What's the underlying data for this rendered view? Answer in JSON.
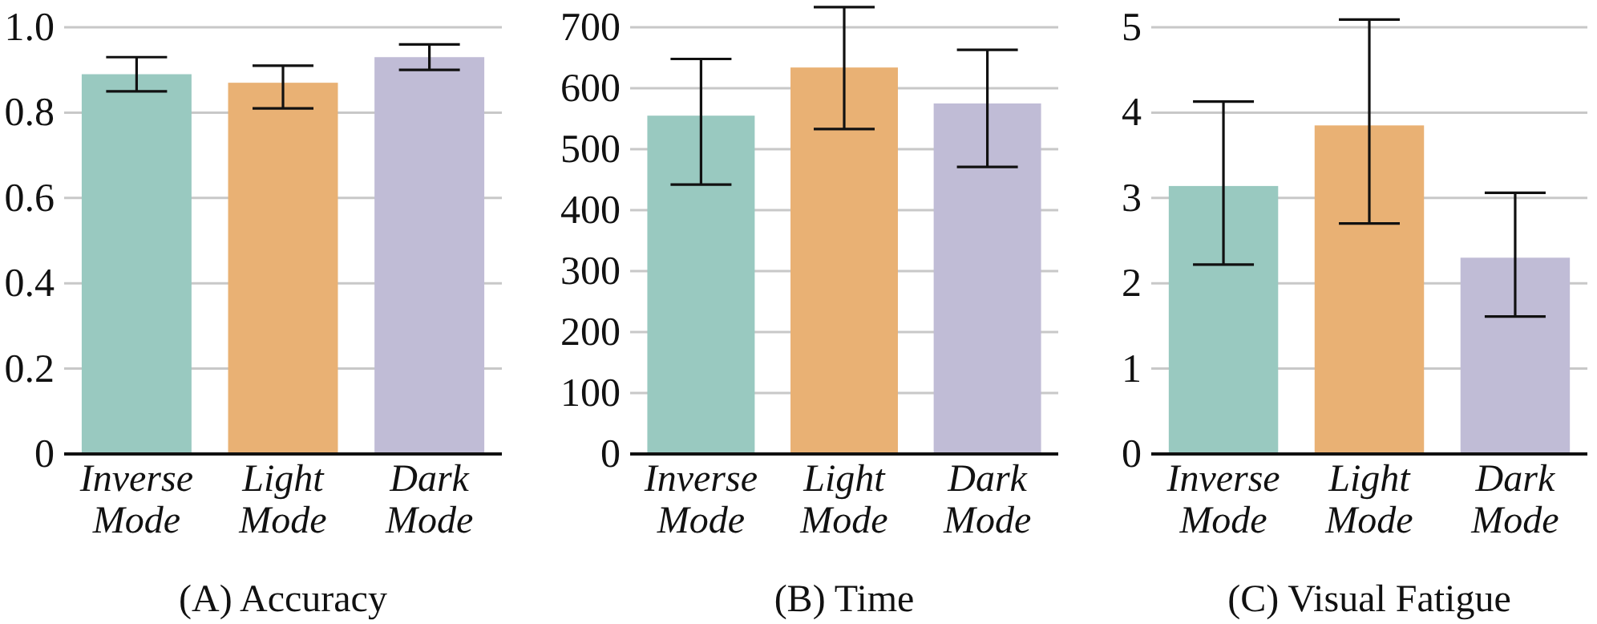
{
  "chart_data": [
    {
      "type": "bar",
      "title": "(A) Accuracy",
      "categories": [
        "Inverse Mode",
        "Light Mode",
        "Dark Mode"
      ],
      "values": [
        0.89,
        0.87,
        0.93
      ],
      "colors": [
        "#99c9c0",
        "#e9b174",
        "#c0bcd6"
      ],
      "errors": [
        [
          0.85,
          0.93
        ],
        [
          0.81,
          0.91
        ],
        [
          0.9,
          0.96
        ]
      ],
      "ylim": [
        0,
        1
      ],
      "yticks": [
        0,
        {
          "value": 0.2,
          "label": "0.2"
        },
        {
          "value": 0.4,
          "label": "0.4"
        },
        {
          "value": 0.6,
          "label": "0.6"
        },
        {
          "value": 0.8,
          "label": "0.8"
        },
        {
          "value": 1,
          "label": "1.0"
        }
      ],
      "grid": "y"
    },
    {
      "type": "bar",
      "title": "(B) Time",
      "categories": [
        "Inverse Mode",
        "Light Mode",
        "Dark Mode"
      ],
      "values": [
        555,
        634,
        575
      ],
      "colors": [
        "#99c9c0",
        "#e9b174",
        "#c0bcd6"
      ],
      "errors": [
        [
          442,
          648
        ],
        [
          533,
          733
        ],
        [
          471,
          663
        ]
      ],
      "ylim": [
        0,
        700
      ],
      "yticks": [
        0,
        100,
        200,
        300,
        400,
        500,
        600,
        700
      ],
      "grid": "y"
    },
    {
      "type": "bar",
      "title": "(C) Visual Fatigue",
      "categories": [
        "Inverse Mode",
        "Light Mode",
        "Dark Mode"
      ],
      "values": [
        3.14,
        3.85,
        2.3
      ],
      "colors": [
        "#99c9c0",
        "#e9b174",
        "#c0bcd6"
      ],
      "errors": [
        [
          2.22,
          4.13
        ],
        [
          2.7,
          5.09
        ],
        [
          1.61,
          3.06
        ]
      ],
      "ylim": [
        0,
        5
      ],
      "yticks": [
        0,
        1,
        2,
        3,
        4,
        5
      ],
      "grid": "y"
    }
  ]
}
